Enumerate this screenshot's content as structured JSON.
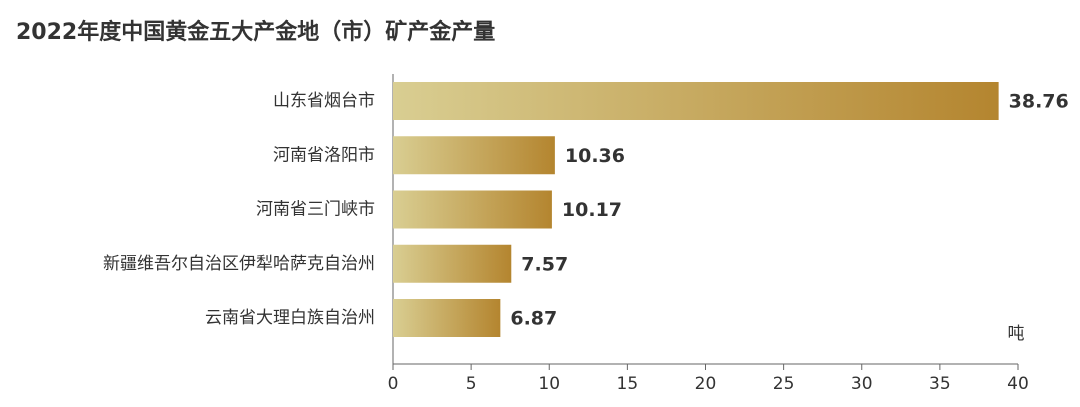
{
  "chart_data": {
    "type": "hbar",
    "title": "2022年度中国黄金五大产金地（市）矿产金产量",
    "categories": [
      "山东省烟台市",
      "河南省洛阳市",
      "河南省三门峡市",
      "新疆维吾尔自治区伊犁哈萨克自治州",
      "云南省大理白族自治州"
    ],
    "values": [
      38.76,
      10.36,
      10.17,
      7.57,
      6.87
    ],
    "gradient": [
      "#d9ce92",
      "#b4852f"
    ],
    "unit": "吨",
    "xlim": [
      0,
      40
    ],
    "xticks": [
      0,
      5,
      10,
      15,
      20,
      25,
      30,
      35,
      40
    ]
  }
}
